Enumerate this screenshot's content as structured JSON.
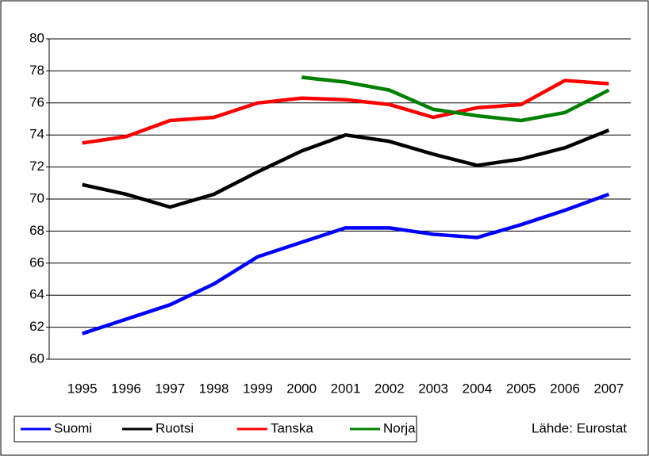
{
  "chart_data": {
    "type": "line",
    "categories": [
      "1995",
      "1996",
      "1997",
      "1998",
      "1999",
      "2000",
      "2001",
      "2002",
      "2003",
      "2004",
      "2005",
      "2006",
      "2007"
    ],
    "series": [
      {
        "name": "Suomi",
        "color": "#0000ff",
        "values": [
          61.6,
          62.5,
          63.4,
          64.7,
          66.4,
          67.3,
          68.2,
          68.2,
          67.8,
          67.6,
          68.4,
          69.3,
          70.3
        ]
      },
      {
        "name": "Ruotsi",
        "color": "#000000",
        "values": [
          70.9,
          70.3,
          69.5,
          70.3,
          71.7,
          73.0,
          74.0,
          73.6,
          72.8,
          72.1,
          72.5,
          73.2,
          74.3
        ]
      },
      {
        "name": "Tanska",
        "color": "#ff0000",
        "values": [
          73.5,
          73.9,
          74.9,
          75.1,
          76.0,
          76.3,
          76.2,
          75.9,
          75.1,
          75.7,
          75.9,
          77.4,
          77.2
        ]
      },
      {
        "name": "Norja",
        "color": "#008000",
        "values": [
          null,
          null,
          null,
          null,
          null,
          77.6,
          77.3,
          76.8,
          75.6,
          75.2,
          74.9,
          75.4,
          76.8
        ]
      }
    ],
    "ylim": [
      60,
      80
    ],
    "yticks": [
      60,
      62,
      64,
      66,
      68,
      70,
      72,
      74,
      76,
      78,
      80
    ],
    "grid": true,
    "legend": "bottom-left",
    "annotation": "Lähde:  Eurostat"
  }
}
